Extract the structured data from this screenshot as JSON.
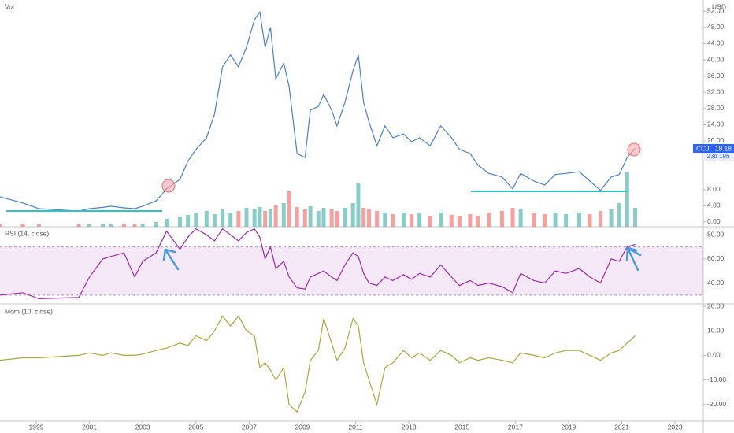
{
  "chart_data": [
    {
      "type": "line",
      "y_label": "USD",
      "xlim": [
        1997.64,
        2024.06
      ],
      "ylim": [
        -1.17,
        54.76
      ],
      "yticks": [
        {
          "value": 0,
          "label": "0.00"
        },
        {
          "value": 4,
          "label": "4.00"
        },
        {
          "value": 8,
          "label": "8.00"
        },
        {
          "value": 20,
          "label": "20.00"
        },
        {
          "value": 24,
          "label": "24.00"
        },
        {
          "value": 28,
          "label": "28.00"
        },
        {
          "value": 32,
          "label": "32.00"
        },
        {
          "value": 36,
          "label": "36.00"
        },
        {
          "value": 40,
          "label": "40.00"
        },
        {
          "value": 44,
          "label": "44.00"
        },
        {
          "value": 48,
          "label": "48.00"
        },
        {
          "value": 52,
          "label": "52.00"
        }
      ],
      "y2lim": [
        0,
        100
      ],
      "countdown": "23d 19h",
      "x": [
        1997.64,
        1998.5,
        1999.1,
        2000.6,
        2001,
        2001.5,
        2001.8,
        2002.3,
        2002.7,
        2003,
        2003.5,
        2003.9,
        2004.4,
        2004.7,
        2005,
        2005.4,
        2005.7,
        2006,
        2006.3,
        2006.6,
        2006.9,
        2007.2,
        2007.4,
        2007.6,
        2007.8,
        2008,
        2008.3,
        2008.5,
        2008.8,
        2009.1,
        2009.3,
        2009.6,
        2009.8,
        2010.1,
        2010.3,
        2010.6,
        2010.9,
        2011.1,
        2011.3,
        2011.5,
        2011.8,
        2012.1,
        2012.4,
        2012.8,
        2013.1,
        2013.4,
        2013.8,
        2014.2,
        2014.6,
        2014.9,
        2015.3,
        2015.6,
        2016,
        2016.5,
        2016.9,
        2017.2,
        2017.7,
        2018.1,
        2018.5,
        2018.9,
        2019.4,
        2019.8,
        2020.2,
        2020.6,
        2020.9,
        2021.2,
        2021.5
      ],
      "series": [
        {
          "name": "CCJ",
          "color": "#4a7fd4",
          "values": [
            6.2,
            4.7,
            3.3,
            2.7,
            3.3,
            3.6,
            3.9,
            3.5,
            3.3,
            3.9,
            5.2,
            8.2,
            10.5,
            15,
            17.9,
            20.8,
            26.6,
            38.3,
            41.2,
            38.3,
            43.1,
            49.9,
            51.8,
            43.1,
            48,
            35.3,
            39.2,
            33.4,
            16.9,
            15.9,
            27.6,
            28.5,
            31.5,
            27.6,
            23.7,
            29.5,
            37.3,
            41.2,
            29.5,
            24.7,
            18.8,
            23.7,
            20.8,
            21.7,
            19.8,
            20.8,
            18.8,
            23.7,
            20.8,
            17.9,
            16.9,
            14,
            12,
            11.1,
            8.2,
            12,
            10.1,
            9.1,
            11.7,
            12,
            12.4,
            10.1,
            7.8,
            11.1,
            11.7,
            15.9,
            18.18
          ]
        },
        {
          "name": "Vol",
          "type": "bar",
          "axis": "y2",
          "values": [
            4,
            4,
            3,
            3,
            3,
            4,
            3,
            4,
            3,
            4,
            6,
            10,
            12,
            15,
            18,
            20,
            16,
            22,
            18,
            20,
            24,
            22,
            25,
            20,
            22,
            28,
            30,
            45,
            25,
            22,
            26,
            20,
            24,
            22,
            20,
            24,
            30,
            55,
            24,
            22,
            20,
            18,
            16,
            18,
            16,
            18,
            14,
            18,
            15,
            14,
            16,
            14,
            18,
            20,
            24,
            22,
            18,
            16,
            18,
            16,
            18,
            16,
            20,
            22,
            30,
            70,
            24
          ],
          "colors": [
            "#ef5350",
            "#ef5350",
            "#ef5350",
            "#ef5350",
            "#26a69a",
            "#26a69a",
            "#26a69a",
            "#ef5350",
            "#ef5350",
            "#26a69a",
            "#26a69a",
            "#26a69a",
            "#26a69a",
            "#26a69a",
            "#26a69a",
            "#26a69a",
            "#26a69a",
            "#26a69a",
            "#26a69a",
            "#ef5350",
            "#26a69a",
            "#26a69a",
            "#26a69a",
            "#ef5350",
            "#26a69a",
            "#ef5350",
            "#26a69a",
            "#ef5350",
            "#ef5350",
            "#ef5350",
            "#26a69a",
            "#26a69a",
            "#26a69a",
            "#ef5350",
            "#ef5350",
            "#26a69a",
            "#26a69a",
            "#26a69a",
            "#ef5350",
            "#ef5350",
            "#ef5350",
            "#26a69a",
            "#ef5350",
            "#26a69a",
            "#ef5350",
            "#26a69a",
            "#ef5350",
            "#26a69a",
            "#ef5350",
            "#ef5350",
            "#ef5350",
            "#ef5350",
            "#ef5350",
            "#ef5350",
            "#ef5350",
            "#26a69a",
            "#ef5350",
            "#ef5350",
            "#26a69a",
            "#26a69a",
            "#26a69a",
            "#ef5350",
            "#ef5350",
            "#26a69a",
            "#26a69a",
            "#26a69a",
            "#26a69a"
          ]
        }
      ]
    },
    {
      "type": "line",
      "title": "RSI (14, close)",
      "xlim": [
        1997.64,
        2024.06
      ],
      "ylim": [
        22.7,
        86.7
      ],
      "band": [
        30,
        70
      ],
      "yticks": [
        {
          "value": 40,
          "label": "40.00"
        },
        {
          "value": 60,
          "label": "60.00"
        },
        {
          "value": 80,
          "label": "80.00"
        }
      ],
      "x": [
        1997.64,
        1998.5,
        1999.1,
        2000.6,
        2001,
        2001.5,
        2001.8,
        2002.3,
        2002.7,
        2003,
        2003.5,
        2003.9,
        2004.4,
        2004.7,
        2005,
        2005.4,
        2005.7,
        2006,
        2006.3,
        2006.6,
        2006.9,
        2007.2,
        2007.4,
        2007.6,
        2007.8,
        2008,
        2008.3,
        2008.5,
        2008.8,
        2009.1,
        2009.3,
        2009.6,
        2009.8,
        2010.1,
        2010.3,
        2010.6,
        2010.9,
        2011.1,
        2011.3,
        2011.5,
        2011.8,
        2012.1,
        2012.4,
        2012.8,
        2013.1,
        2013.4,
        2013.8,
        2014.2,
        2014.6,
        2014.9,
        2015.3,
        2015.6,
        2016,
        2016.5,
        2016.9,
        2017.2,
        2017.7,
        2018.1,
        2018.5,
        2018.9,
        2019.4,
        2019.8,
        2020.2,
        2020.6,
        2020.9,
        2021.2,
        2021.5
      ],
      "series": [
        {
          "color": "#9c27b0",
          "values": [
            30,
            32,
            27,
            28,
            45,
            60,
            62,
            65,
            45,
            58,
            65,
            83,
            68,
            78,
            85,
            80,
            75,
            85,
            80,
            75,
            82,
            85,
            78,
            60,
            70,
            52,
            58,
            45,
            36,
            35,
            45,
            48,
            50,
            45,
            42,
            55,
            65,
            62,
            48,
            40,
            38,
            45,
            42,
            47,
            43,
            48,
            45,
            55,
            45,
            38,
            42,
            38,
            40,
            37,
            32,
            48,
            42,
            40,
            50,
            48,
            52,
            45,
            40,
            60,
            58,
            70,
            72
          ]
        }
      ]
    },
    {
      "type": "line",
      "title": "Mom (10, close)",
      "xlim": [
        1997.64,
        2024.06
      ],
      "ylim": [
        -26.8,
        20.97
      ],
      "yticks": [
        {
          "value": -20,
          "label": "-20.00"
        },
        {
          "value": -10,
          "label": "-10.00"
        },
        {
          "value": 0,
          "label": "0.00"
        },
        {
          "value": 10,
          "label": "10.00"
        },
        {
          "value": 20,
          "label": "20.00"
        }
      ],
      "xticks": [
        1999,
        2001,
        2003,
        2005,
        2007,
        2009,
        2011,
        2013,
        2015,
        2017,
        2019,
        2021,
        2023
      ],
      "x": [
        1997.64,
        1998.5,
        1999.1,
        2000.6,
        2001,
        2001.5,
        2001.8,
        2002.3,
        2002.7,
        2003,
        2003.5,
        2003.9,
        2004.4,
        2004.7,
        2005,
        2005.4,
        2005.7,
        2006,
        2006.3,
        2006.6,
        2006.9,
        2007.2,
        2007.4,
        2007.6,
        2007.8,
        2008,
        2008.3,
        2008.5,
        2008.8,
        2009.1,
        2009.3,
        2009.6,
        2009.8,
        2010.1,
        2010.3,
        2010.6,
        2010.9,
        2011.1,
        2011.3,
        2011.5,
        2011.8,
        2012.1,
        2012.4,
        2012.8,
        2013.1,
        2013.4,
        2013.8,
        2014.2,
        2014.6,
        2014.9,
        2015.3,
        2015.6,
        2016,
        2016.5,
        2016.9,
        2017.2,
        2017.7,
        2018.1,
        2018.5,
        2018.9,
        2019.4,
        2019.8,
        2020.2,
        2020.6,
        2020.9,
        2021.2,
        2021.5
      ],
      "series": [
        {
          "color": "#aaa83a",
          "values": [
            -2,
            -1,
            -1,
            0,
            1,
            0,
            1,
            0,
            0,
            0.5,
            2,
            3,
            5,
            4,
            8,
            6,
            10,
            16,
            12,
            16,
            10,
            8,
            -5,
            -3,
            -6,
            -10,
            -5,
            -20,
            -23,
            -15,
            -2,
            2,
            15,
            5,
            -2,
            3,
            15,
            12,
            -3,
            -10,
            -20,
            -5,
            -3,
            2,
            -1,
            1,
            -2,
            2,
            0,
            -3,
            -1,
            -2,
            -1,
            -2,
            -3,
            1,
            0,
            -1,
            1,
            2,
            2,
            0,
            -2,
            1,
            2,
            5,
            8
          ]
        }
      ]
    }
  ]
}
